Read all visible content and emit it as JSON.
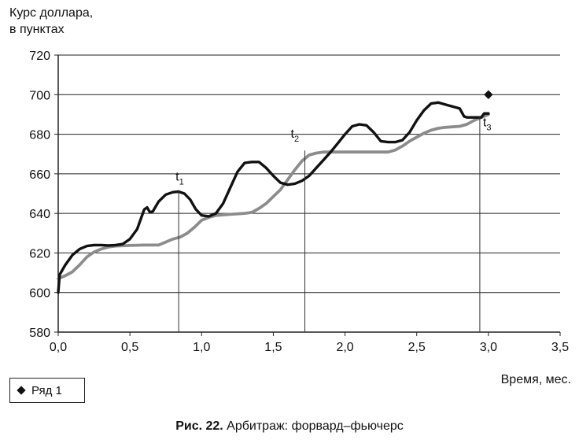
{
  "chart_data": {
    "type": "line",
    "ylabel_line1": "Курс доллара,",
    "ylabel_line2": "в пунктах",
    "xlabel": "Время, мес.",
    "xlim": [
      0,
      3.5
    ],
    "ylim": [
      580,
      720
    ],
    "x_ticks": [
      "0,0",
      "0,5",
      "1,0",
      "1,5",
      "2,0",
      "2,5",
      "3,0",
      "3,5"
    ],
    "x_tick_values": [
      0,
      0.5,
      1.0,
      1.5,
      2.0,
      2.5,
      3.0,
      3.5
    ],
    "y_ticks": [
      580,
      600,
      620,
      640,
      660,
      680,
      700,
      720
    ],
    "grid": "horizontal",
    "series": [
      {
        "color": "#111111",
        "points": [
          [
            0,
            600
          ],
          [
            0.01,
            609
          ],
          [
            0.05,
            614
          ],
          [
            0.1,
            619
          ],
          [
            0.15,
            622
          ],
          [
            0.2,
            623.5
          ],
          [
            0.25,
            624
          ],
          [
            0.3,
            624
          ],
          [
            0.35,
            623.8
          ],
          [
            0.4,
            624
          ],
          [
            0.45,
            624.5
          ],
          [
            0.5,
            627
          ],
          [
            0.55,
            632
          ],
          [
            0.58,
            638
          ],
          [
            0.6,
            642
          ],
          [
            0.62,
            643
          ],
          [
            0.64,
            640.5
          ],
          [
            0.66,
            641
          ],
          [
            0.7,
            646
          ],
          [
            0.75,
            649.5
          ],
          [
            0.8,
            650.7
          ],
          [
            0.84,
            651
          ],
          [
            0.88,
            650
          ],
          [
            0.92,
            647
          ],
          [
            0.96,
            642
          ],
          [
            1.0,
            639
          ],
          [
            1.05,
            638.5
          ],
          [
            1.1,
            640
          ],
          [
            1.15,
            645
          ],
          [
            1.2,
            653
          ],
          [
            1.25,
            661
          ],
          [
            1.3,
            665.5
          ],
          [
            1.35,
            666
          ],
          [
            1.4,
            666
          ],
          [
            1.45,
            663
          ],
          [
            1.5,
            659
          ],
          [
            1.55,
            655.5
          ],
          [
            1.6,
            654.5
          ],
          [
            1.65,
            655
          ],
          [
            1.7,
            656.5
          ],
          [
            1.75,
            659
          ],
          [
            1.8,
            663
          ],
          [
            1.85,
            667
          ],
          [
            1.9,
            671
          ],
          [
            1.95,
            675.5
          ],
          [
            2.0,
            680
          ],
          [
            2.05,
            684
          ],
          [
            2.1,
            685
          ],
          [
            2.15,
            684.5
          ],
          [
            2.2,
            681
          ],
          [
            2.25,
            676.5
          ],
          [
            2.3,
            676
          ],
          [
            2.35,
            676
          ],
          [
            2.4,
            677
          ],
          [
            2.45,
            681
          ],
          [
            2.5,
            687
          ],
          [
            2.55,
            692
          ],
          [
            2.6,
            695.5
          ],
          [
            2.65,
            696
          ],
          [
            2.7,
            695
          ],
          [
            2.75,
            694
          ],
          [
            2.8,
            693
          ],
          [
            2.83,
            689
          ],
          [
            2.85,
            688.5
          ],
          [
            2.95,
            688.5
          ],
          [
            2.97,
            690.5
          ],
          [
            3.0,
            690.5
          ]
        ]
      },
      {
        "color": "#8c8c8c",
        "points": [
          [
            0,
            607
          ],
          [
            0.05,
            608.5
          ],
          [
            0.1,
            610.5
          ],
          [
            0.15,
            614
          ],
          [
            0.2,
            618
          ],
          [
            0.25,
            620.5
          ],
          [
            0.3,
            622
          ],
          [
            0.35,
            623
          ],
          [
            0.4,
            623.5
          ],
          [
            0.5,
            623.8
          ],
          [
            0.6,
            624
          ],
          [
            0.7,
            624
          ],
          [
            0.75,
            625.5
          ],
          [
            0.8,
            627
          ],
          [
            0.85,
            628
          ],
          [
            0.9,
            630
          ],
          [
            0.95,
            633
          ],
          [
            1.0,
            636.5
          ],
          [
            1.05,
            638
          ],
          [
            1.1,
            639
          ],
          [
            1.2,
            639.5
          ],
          [
            1.3,
            640
          ],
          [
            1.35,
            640.5
          ],
          [
            1.4,
            642.5
          ],
          [
            1.45,
            645
          ],
          [
            1.5,
            648.5
          ],
          [
            1.55,
            652
          ],
          [
            1.6,
            657
          ],
          [
            1.65,
            662
          ],
          [
            1.7,
            666.5
          ],
          [
            1.75,
            669.5
          ],
          [
            1.8,
            670.5
          ],
          [
            1.85,
            671
          ],
          [
            1.9,
            671
          ],
          [
            2.0,
            671
          ],
          [
            2.1,
            671
          ],
          [
            2.2,
            671
          ],
          [
            2.3,
            671
          ],
          [
            2.35,
            672
          ],
          [
            2.4,
            674
          ],
          [
            2.45,
            676.5
          ],
          [
            2.5,
            678.5
          ],
          [
            2.55,
            680.5
          ],
          [
            2.6,
            682
          ],
          [
            2.65,
            683
          ],
          [
            2.7,
            683.5
          ],
          [
            2.8,
            684
          ],
          [
            2.85,
            685
          ],
          [
            2.9,
            687
          ],
          [
            2.95,
            688.5
          ],
          [
            3.0,
            690
          ]
        ]
      }
    ],
    "markers": [
      {
        "label": "t1",
        "base": "t",
        "sub": "1",
        "x": 0.84,
        "y": 651
      },
      {
        "label": "t2",
        "base": "t",
        "sub": "2",
        "x": 1.72,
        "y": 671
      },
      {
        "label": "t3",
        "base": "t",
        "sub": "3",
        "x": 2.94,
        "y": 688
      }
    ],
    "scatter": {
      "name": "Ряд 1",
      "x": 3.0,
      "y": 700
    },
    "legend_position": "bottom-left"
  },
  "caption": {
    "prefix": "Рис. 22.",
    "text": " Арбитраж: форвард–фьючерс"
  }
}
